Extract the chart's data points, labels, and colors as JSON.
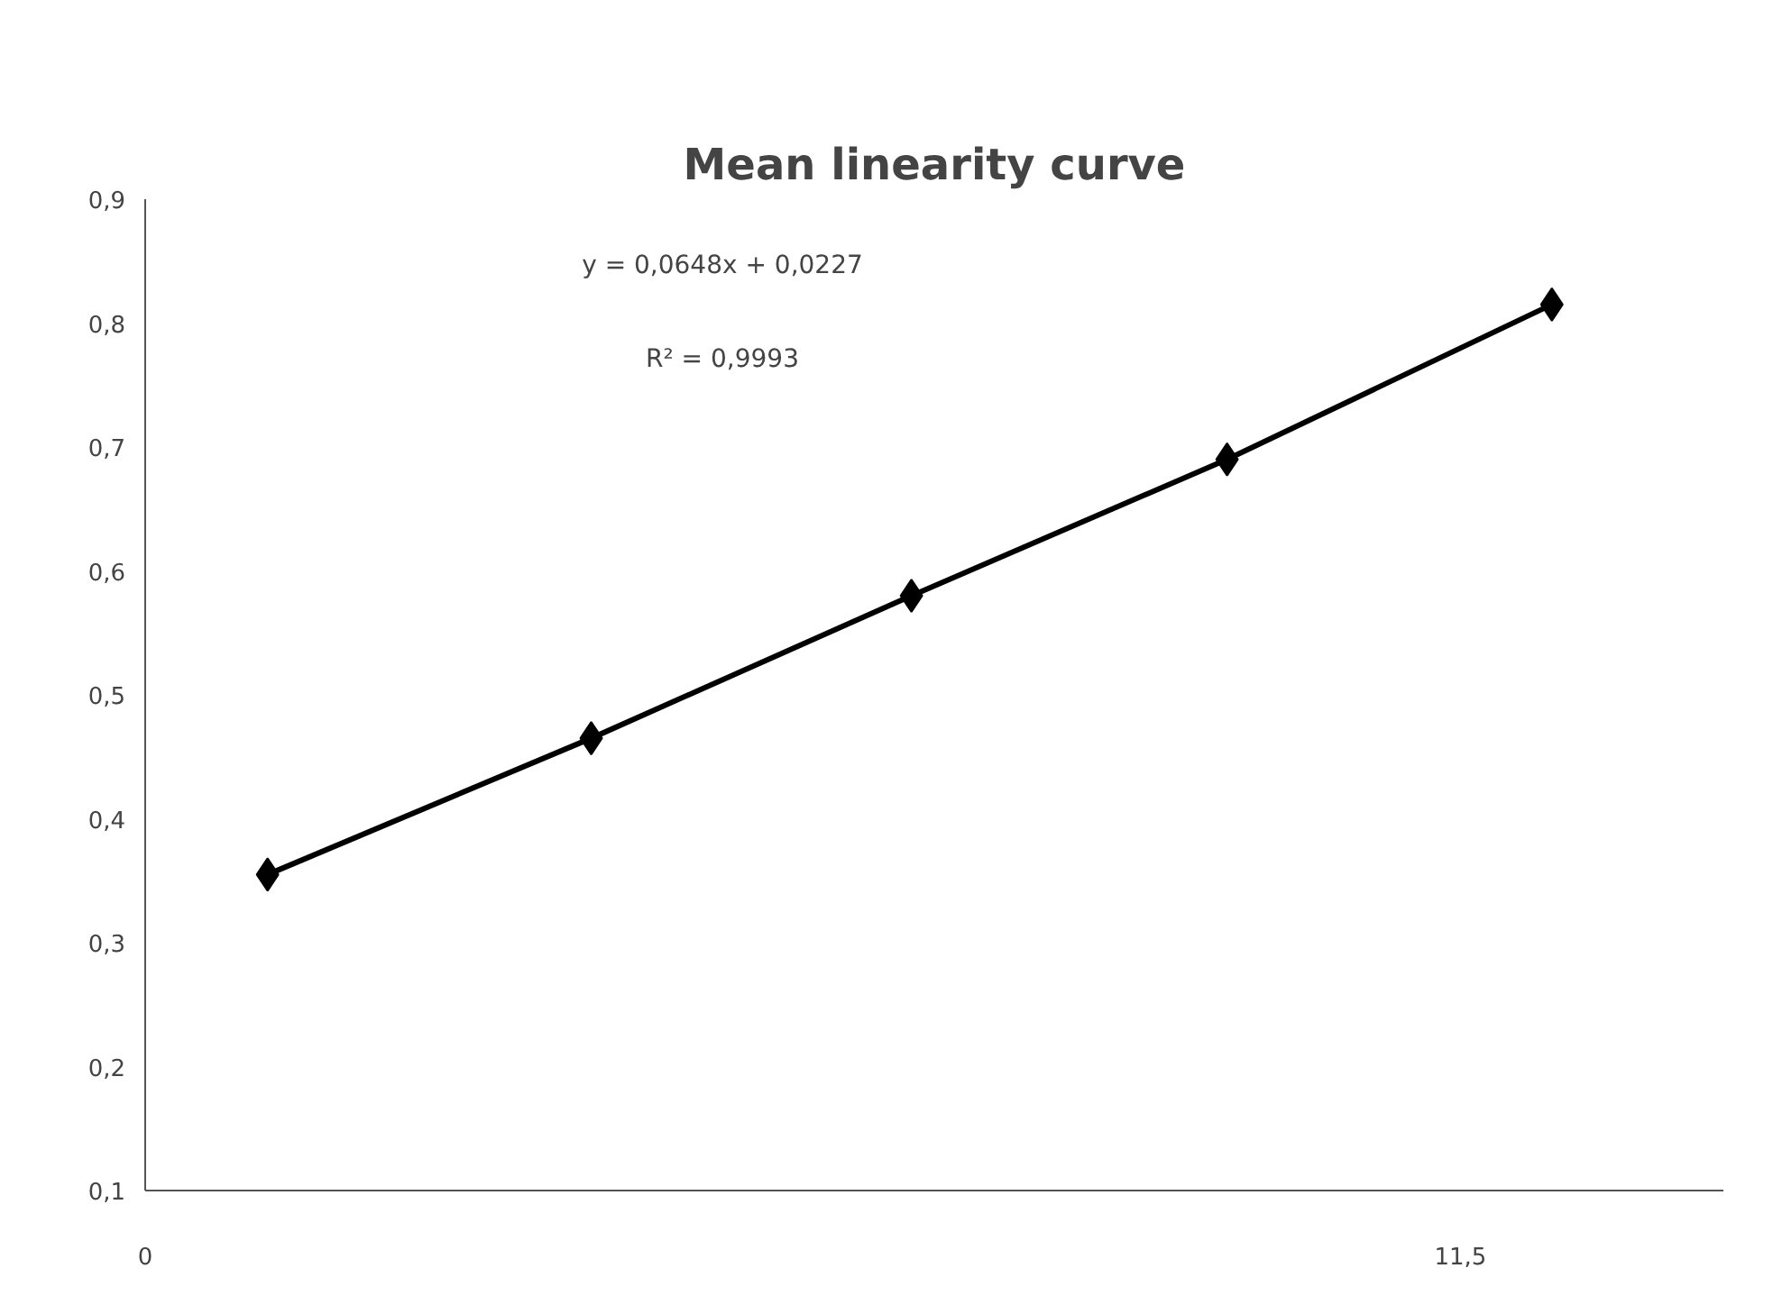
{
  "chart_data": {
    "type": "line",
    "title": "Mean linearity curve",
    "x": [
      1.07,
      3.9,
      6.7,
      9.46,
      12.3
    ],
    "series": [
      {
        "color": "#000000",
        "values": [
          0.355,
          0.465,
          0.58,
          0.69,
          0.815
        ]
      }
    ],
    "xlim": [
      0,
      13.8
    ],
    "xticks": [
      0,
      {
        "value": 11.5,
        "label": "11,5"
      }
    ],
    "ylim": [
      0.1,
      0.9
    ],
    "yticks": [
      {
        "value": 0.1,
        "label": "0,1"
      },
      {
        "value": 0.2,
        "label": "0,2"
      },
      {
        "value": 0.3,
        "label": "0,3"
      },
      {
        "value": 0.4,
        "label": "0,4"
      },
      {
        "value": 0.5,
        "label": "0,5"
      },
      {
        "value": 0.6,
        "label": "0,6"
      },
      {
        "value": 0.7,
        "label": "0,7"
      },
      {
        "value": 0.8,
        "label": "0,8"
      },
      {
        "value": 0.9,
        "label": "0,9"
      }
    ],
    "annotations": [
      "y = 0,0648x + 0,0227",
      "R² = 0,9993"
    ],
    "grid": false,
    "marker": "diamond",
    "line_style": "solid"
  }
}
